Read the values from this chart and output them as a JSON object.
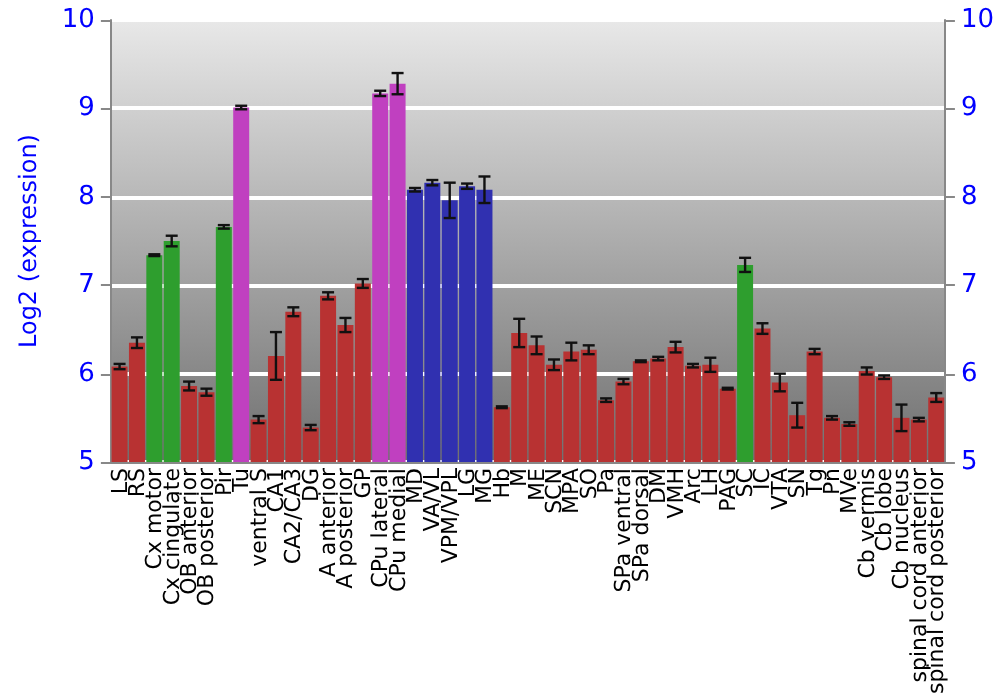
{
  "chart_data": {
    "type": "bar",
    "ylabel": "Log2 (expression)",
    "categories": [
      "LS",
      "RS",
      "Cx motor",
      "Cx cingulate",
      "OB anterior",
      "OB posterior",
      "Pir",
      "Tu",
      "ventral S",
      "CA1",
      "CA2/CA3",
      "DG",
      "A anterior",
      "A posterior",
      "GP",
      "CPu lateral",
      "CPu medial",
      "MD",
      "VA/VL",
      "VPM/VPL",
      "LG",
      "MG",
      "Hb",
      "M",
      "ME",
      "SCN",
      "MPA",
      "SO",
      "Pa",
      "SPa ventral",
      "SPa dorsal",
      "DM",
      "VMH",
      "Arc",
      "LH",
      "PAG",
      "SC",
      "IC",
      "VTA",
      "SN",
      "Tg",
      "Pn",
      "MVe",
      "Cb vermis",
      "Cb lobe",
      "Cb nucleus",
      "spinal cord anterior",
      "spinal cord posterior"
    ],
    "values": [
      6.08,
      6.35,
      7.34,
      7.5,
      5.86,
      5.79,
      7.66,
      9.01,
      5.48,
      6.2,
      6.7,
      5.39,
      6.88,
      6.55,
      7.02,
      9.17,
      9.28,
      8.08,
      8.16,
      7.96,
      8.12,
      8.08,
      5.62,
      6.46,
      6.32,
      6.1,
      6.25,
      6.27,
      5.7,
      5.91,
      6.14,
      6.17,
      6.3,
      6.09,
      6.1,
      5.83,
      7.23,
      6.51,
      5.9,
      5.53,
      6.25,
      5.5,
      5.43,
      6.03,
      5.96,
      5.5,
      5.48,
      5.73
    ],
    "errors": [
      0.03,
      0.06,
      0.01,
      0.06,
      0.05,
      0.04,
      0.02,
      0.02,
      0.04,
      0.27,
      0.05,
      0.03,
      0.04,
      0.08,
      0.05,
      0.03,
      0.12,
      0.02,
      0.03,
      0.2,
      0.03,
      0.15,
      0.01,
      0.16,
      0.1,
      0.06,
      0.1,
      0.05,
      0.02,
      0.03,
      0.01,
      0.02,
      0.06,
      0.02,
      0.08,
      0.01,
      0.08,
      0.06,
      0.1,
      0.14,
      0.03,
      0.02,
      0.02,
      0.04,
      0.02,
      0.15,
      0.02,
      0.05
    ],
    "colors": [
      "#b83232",
      "#b83232",
      "#2e9e2e",
      "#2e9e2e",
      "#b83232",
      "#b83232",
      "#2e9e2e",
      "#c040c0",
      "#b83232",
      "#b83232",
      "#b83232",
      "#b83232",
      "#b83232",
      "#b83232",
      "#b83232",
      "#c040c0",
      "#c040c0",
      "#3030b0",
      "#3030b0",
      "#3030b0",
      "#3030b0",
      "#3030b0",
      "#b83232",
      "#b83232",
      "#b83232",
      "#b83232",
      "#b83232",
      "#b83232",
      "#b83232",
      "#b83232",
      "#b83232",
      "#b83232",
      "#b83232",
      "#b83232",
      "#b83232",
      "#b83232",
      "#2e9e2e",
      "#b83232",
      "#b83232",
      "#b83232",
      "#b83232",
      "#b83232",
      "#b83232",
      "#b83232",
      "#b83232",
      "#b83232",
      "#b83232",
      "#b83232"
    ],
    "ylim": [
      5,
      10
    ],
    "yticks": [
      5,
      6,
      7,
      8,
      9,
      10
    ],
    "y2lim": [
      5,
      10
    ],
    "y2ticks": [
      5,
      6,
      7,
      8,
      9,
      10
    ],
    "grid": "y"
  }
}
